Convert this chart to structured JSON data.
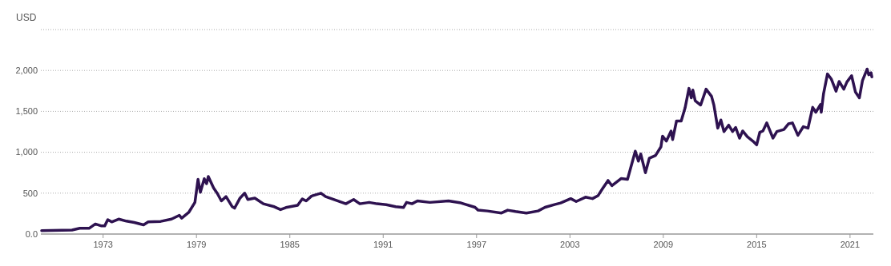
{
  "chart_data": {
    "type": "line",
    "ylabel": "USD",
    "xlim": [
      1969,
      2022.5
    ],
    "xticks": [
      1973,
      1979,
      1985,
      1991,
      1997,
      2003,
      2009,
      2015,
      2021
    ],
    "ylim": [
      0,
      2500
    ],
    "yticks": [
      {
        "value": 0,
        "label": "0.0"
      },
      500,
      {
        "value": 1000,
        "label": "1,000"
      },
      {
        "value": 1500,
        "label": "1,500"
      },
      {
        "value": 2000,
        "label": "2,000"
      },
      {
        "value": 2500,
        "label": null
      }
    ],
    "grid": "y",
    "marker": "none",
    "line_style": "solid",
    "series": [
      {
        "color": "#2e1250",
        "x": [
          1969.05,
          1971.0,
          1971.5,
          1972.1,
          1972.5,
          1972.9,
          1973.1,
          1973.3,
          1973.55,
          1974.0,
          1974.5,
          1975.0,
          1975.6,
          1975.9,
          1976.7,
          1977.4,
          1977.9,
          1978.05,
          1978.5,
          1978.9,
          1979.1,
          1979.25,
          1979.5,
          1979.65,
          1979.76,
          1980.1,
          1980.35,
          1980.6,
          1980.9,
          1981.3,
          1981.45,
          1981.8,
          1982.1,
          1982.3,
          1982.75,
          1983.3,
          1984.0,
          1984.4,
          1984.75,
          1985.5,
          1985.8,
          1986.05,
          1986.4,
          1987.0,
          1987.3,
          1988.1,
          1988.6,
          1989.1,
          1989.5,
          1990.1,
          1990.6,
          1991.2,
          1991.8,
          1992.3,
          1992.5,
          1992.85,
          1993.2,
          1994.0,
          1995.2,
          1996.0,
          1996.9,
          1997.1,
          1997.7,
          1998.6,
          1999.0,
          1999.5,
          2000.2,
          2000.95,
          2001.4,
          2002.05,
          2002.4,
          2003.05,
          2003.4,
          2004.0,
          2004.45,
          2004.8,
          2005.1,
          2005.45,
          2005.7,
          2006.3,
          2006.7,
          2007.2,
          2007.4,
          2007.55,
          2007.85,
          2008.1,
          2008.5,
          2008.85,
          2008.95,
          2009.2,
          2009.5,
          2009.6,
          2009.85,
          2010.15,
          2010.4,
          2010.65,
          2010.8,
          2010.9,
          2011.05,
          2011.4,
          2011.75,
          2012.1,
          2012.25,
          2012.5,
          2012.7,
          2012.9,
          2013.2,
          2013.45,
          2013.65,
          2013.9,
          2014.1,
          2014.4,
          2014.75,
          2015.0,
          2015.2,
          2015.4,
          2015.65,
          2016.05,
          2016.3,
          2016.75,
          2017.05,
          2017.3,
          2017.65,
          2018.0,
          2018.3,
          2018.6,
          2018.8,
          2019.1,
          2019.15,
          2019.3,
          2019.55,
          2019.8,
          2020.1,
          2020.3,
          2020.6,
          2020.8,
          2021.1,
          2021.35,
          2021.6,
          2021.8,
          2022.1,
          2022.2,
          2022.35,
          2022.4
        ],
        "values": [
          42,
          49,
          70,
          70,
          123,
          99,
          99,
          176,
          148,
          183,
          158,
          141,
          113,
          148,
          155,
          183,
          229,
          194,
          264,
          387,
          669,
          510,
          676,
          616,
          704,
          563,
          493,
          405,
          458,
          334,
          317,
          440,
          500,
          422,
          440,
          370,
          334,
          299,
          324,
          352,
          429,
          405,
          465,
          500,
          458,
          405,
          370,
          422,
          370,
          387,
          370,
          359,
          334,
          324,
          387,
          370,
          405,
          387,
          405,
          380,
          327,
          292,
          282,
          257,
          292,
          275,
          257,
          282,
          327,
          363,
          380,
          433,
          398,
          451,
          433,
          468,
          556,
          655,
          591,
          679,
          669,
          1014,
          891,
          979,
          750,
          926,
          961,
          1067,
          1197,
          1137,
          1260,
          1155,
          1383,
          1383,
          1542,
          1781,
          1665,
          1760,
          1630,
          1577,
          1771,
          1683,
          1577,
          1295,
          1394,
          1253,
          1331,
          1253,
          1302,
          1172,
          1260,
          1190,
          1137,
          1091,
          1243,
          1260,
          1359,
          1172,
          1253,
          1278,
          1348,
          1359,
          1207,
          1313,
          1295,
          1549,
          1489,
          1584,
          1489,
          1718,
          1957,
          1894,
          1746,
          1866,
          1771,
          1859,
          1936,
          1735,
          1665,
          1876,
          2017,
          1947,
          1971,
          1922
        ]
      }
    ]
  }
}
